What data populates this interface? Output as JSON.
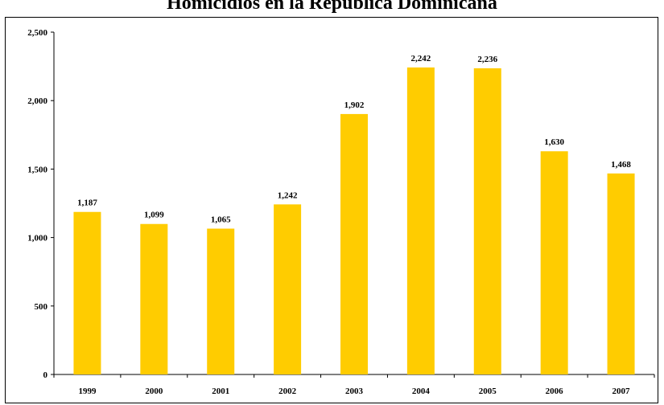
{
  "chart_data": {
    "type": "bar",
    "title": "Homicidios en la República Dominicana",
    "categories": [
      "1999",
      "2000",
      "2001",
      "2002",
      "2003",
      "2004",
      "2005",
      "2006",
      "2007"
    ],
    "values": [
      1187,
      1099,
      1065,
      1242,
      1902,
      2242,
      2236,
      1630,
      1468
    ],
    "value_labels": [
      "1,187",
      "1,099",
      "1,065",
      "1,242",
      "1,902",
      "2,242",
      "2,236",
      "1,630",
      "1,468"
    ],
    "ylim": [
      0,
      2500
    ],
    "yticks": [
      0,
      500,
      1000,
      1500,
      2000,
      2500
    ],
    "ytick_labels": [
      "0",
      "500",
      "1,000",
      "1,500",
      "2,000",
      "2,500"
    ],
    "xlabel": "",
    "ylabel": "",
    "grid": false,
    "bar_color": "#FFCC00"
  }
}
